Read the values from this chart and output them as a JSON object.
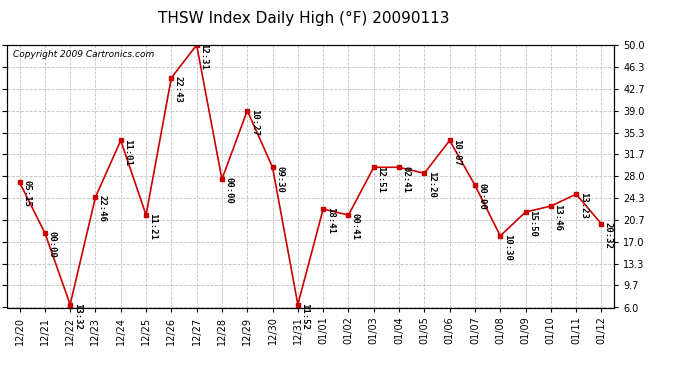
{
  "title": "THSW Index Daily High (°F) 20090113",
  "copyright": "Copyright 2009 Cartronics.com",
  "x_labels": [
    "12/20",
    "12/21",
    "12/22",
    "12/23",
    "12/24",
    "12/25",
    "12/26",
    "12/27",
    "12/28",
    "12/29",
    "12/30",
    "12/31",
    "01/01",
    "01/02",
    "01/03",
    "01/04",
    "01/05",
    "01/06",
    "01/07",
    "01/08",
    "01/09",
    "01/10",
    "01/11",
    "01/12"
  ],
  "y_values": [
    27.0,
    18.5,
    6.5,
    24.5,
    34.0,
    21.5,
    44.5,
    50.0,
    27.5,
    39.0,
    29.5,
    6.5,
    22.5,
    21.5,
    29.5,
    29.5,
    28.5,
    34.0,
    26.5,
    18.0,
    22.0,
    23.0,
    25.0,
    20.0
  ],
  "point_labels": [
    "05:15",
    "00:00",
    "13:32",
    "22:46",
    "11:01",
    "11:21",
    "22:43",
    "12:31",
    "00:00",
    "10:27",
    "09:30",
    "11:52",
    "18:41",
    "00:41",
    "12:51",
    "02:41",
    "12:20",
    "10:07",
    "00:00",
    "10:30",
    "15:50",
    "13:46",
    "13:23",
    "20:32"
  ],
  "y_min": 6.0,
  "y_max": 50.0,
  "y_ticks": [
    6.0,
    9.7,
    13.3,
    17.0,
    20.7,
    24.3,
    28.0,
    31.7,
    35.3,
    39.0,
    42.7,
    46.3,
    50.0
  ],
  "line_color": "#cc0000",
  "marker_color": "#cc0000",
  "bg_color": "#ffffff",
  "grid_color": "#bbbbbb",
  "title_fontsize": 11,
  "label_fontsize": 6.5,
  "tick_fontsize": 7,
  "copyright_fontsize": 6.5
}
